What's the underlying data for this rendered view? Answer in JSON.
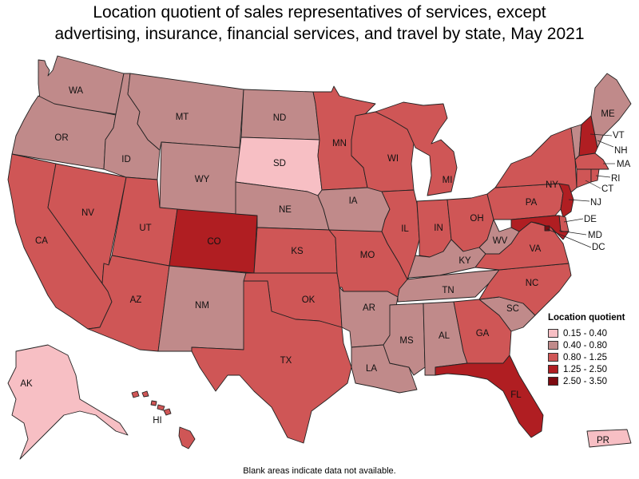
{
  "title_line1": "Location quotient of sales representatives of services, except",
  "title_line2": "advertising, insurance, financial services, and travel by state, May 2021",
  "legend": {
    "title": "Location quotient",
    "items": [
      {
        "label": "0.15 - 0.40",
        "color": "#f7bfc4"
      },
      {
        "label": "0.40 - 0.80",
        "color": "#c08a8a"
      },
      {
        "label": "0.80 - 1.25",
        "color": "#cf5656"
      },
      {
        "label": "1.25 - 2.50",
        "color": "#b01e22"
      },
      {
        "label": "2.50 - 3.50",
        "color": "#7d0a10"
      }
    ]
  },
  "footnote": "Blank areas indicate data not available.",
  "states": [
    {
      "abbr": "WA",
      "cls": 1
    },
    {
      "abbr": "OR",
      "cls": 1
    },
    {
      "abbr": "CA",
      "cls": 2
    },
    {
      "abbr": "NV",
      "cls": 2
    },
    {
      "abbr": "ID",
      "cls": 1
    },
    {
      "abbr": "MT",
      "cls": 1
    },
    {
      "abbr": "WY",
      "cls": 1
    },
    {
      "abbr": "UT",
      "cls": 2
    },
    {
      "abbr": "AZ",
      "cls": 2
    },
    {
      "abbr": "CO",
      "cls": 3
    },
    {
      "abbr": "NM",
      "cls": 1
    },
    {
      "abbr": "ND",
      "cls": 1
    },
    {
      "abbr": "SD",
      "cls": 0
    },
    {
      "abbr": "NE",
      "cls": 1
    },
    {
      "abbr": "KS",
      "cls": 2
    },
    {
      "abbr": "OK",
      "cls": 2
    },
    {
      "abbr": "TX",
      "cls": 2
    },
    {
      "abbr": "MN",
      "cls": 2
    },
    {
      "abbr": "IA",
      "cls": 1
    },
    {
      "abbr": "MO",
      "cls": 2
    },
    {
      "abbr": "AR",
      "cls": 1
    },
    {
      "abbr": "LA",
      "cls": 1
    },
    {
      "abbr": "WI",
      "cls": 2
    },
    {
      "abbr": "IL",
      "cls": 2
    },
    {
      "abbr": "MI",
      "cls": 2
    },
    {
      "abbr": "IN",
      "cls": 2
    },
    {
      "abbr": "OH",
      "cls": 2
    },
    {
      "abbr": "KY",
      "cls": 1
    },
    {
      "abbr": "TN",
      "cls": 1
    },
    {
      "abbr": "MS",
      "cls": 1
    },
    {
      "abbr": "AL",
      "cls": 1
    },
    {
      "abbr": "GA",
      "cls": 2
    },
    {
      "abbr": "FL",
      "cls": 3
    },
    {
      "abbr": "SC",
      "cls": 1
    },
    {
      "abbr": "NC",
      "cls": 2
    },
    {
      "abbr": "VA",
      "cls": 2
    },
    {
      "abbr": "WV",
      "cls": 1
    },
    {
      "abbr": "PA",
      "cls": 2
    },
    {
      "abbr": "NY",
      "cls": 2
    },
    {
      "abbr": "VT",
      "cls": 1
    },
    {
      "abbr": "NH",
      "cls": 3
    },
    {
      "abbr": "ME",
      "cls": 1
    },
    {
      "abbr": "MA",
      "cls": 2
    },
    {
      "abbr": "RI",
      "cls": 2
    },
    {
      "abbr": "CT",
      "cls": 2
    },
    {
      "abbr": "NJ",
      "cls": 3
    },
    {
      "abbr": "DE",
      "cls": 2
    },
    {
      "abbr": "MD",
      "cls": 3
    },
    {
      "abbr": "DC",
      "cls": 4
    },
    {
      "abbr": "AK",
      "cls": 0
    },
    {
      "abbr": "HI",
      "cls": 2
    },
    {
      "abbr": "PR",
      "cls": 0
    }
  ]
}
